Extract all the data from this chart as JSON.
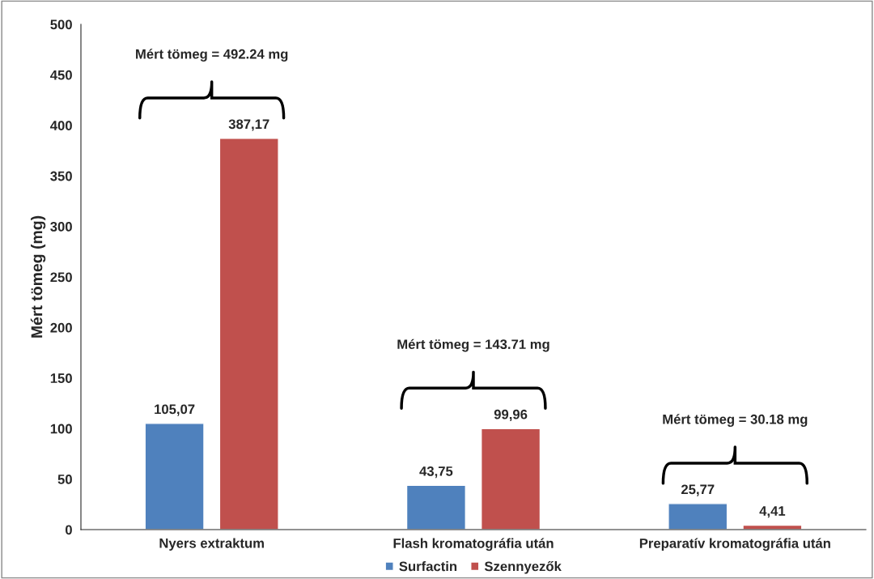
{
  "chart_data": {
    "type": "bar",
    "ylabel": "Mért tömeg (mg)",
    "categories": [
      "Nyers extraktum",
      "Flash kromatográfia után",
      "Preparatív kromatográfia után"
    ],
    "series": [
      {
        "name": "Surfactin",
        "color": "#4f81bd",
        "values": [
          105.07,
          43.75,
          25.77
        ],
        "value_labels": [
          "105,07",
          "43,75",
          "25,77"
        ]
      },
      {
        "name": "Szennyezők",
        "color": "#c0504d",
        "values": [
          387.17,
          99.96,
          4.41
        ],
        "value_labels": [
          "387,17",
          "99,96",
          "4,41"
        ]
      }
    ],
    "ylim": [
      0,
      500
    ],
    "yticks": [
      0,
      50,
      100,
      150,
      200,
      250,
      300,
      350,
      400,
      450,
      500
    ],
    "grid": false,
    "legend": "bottom",
    "annotations": [
      "Mért tömeg = 492.24 mg",
      "Mért tömeg = 143.71 mg",
      "Mért tömeg = 30.18 mg"
    ]
  }
}
